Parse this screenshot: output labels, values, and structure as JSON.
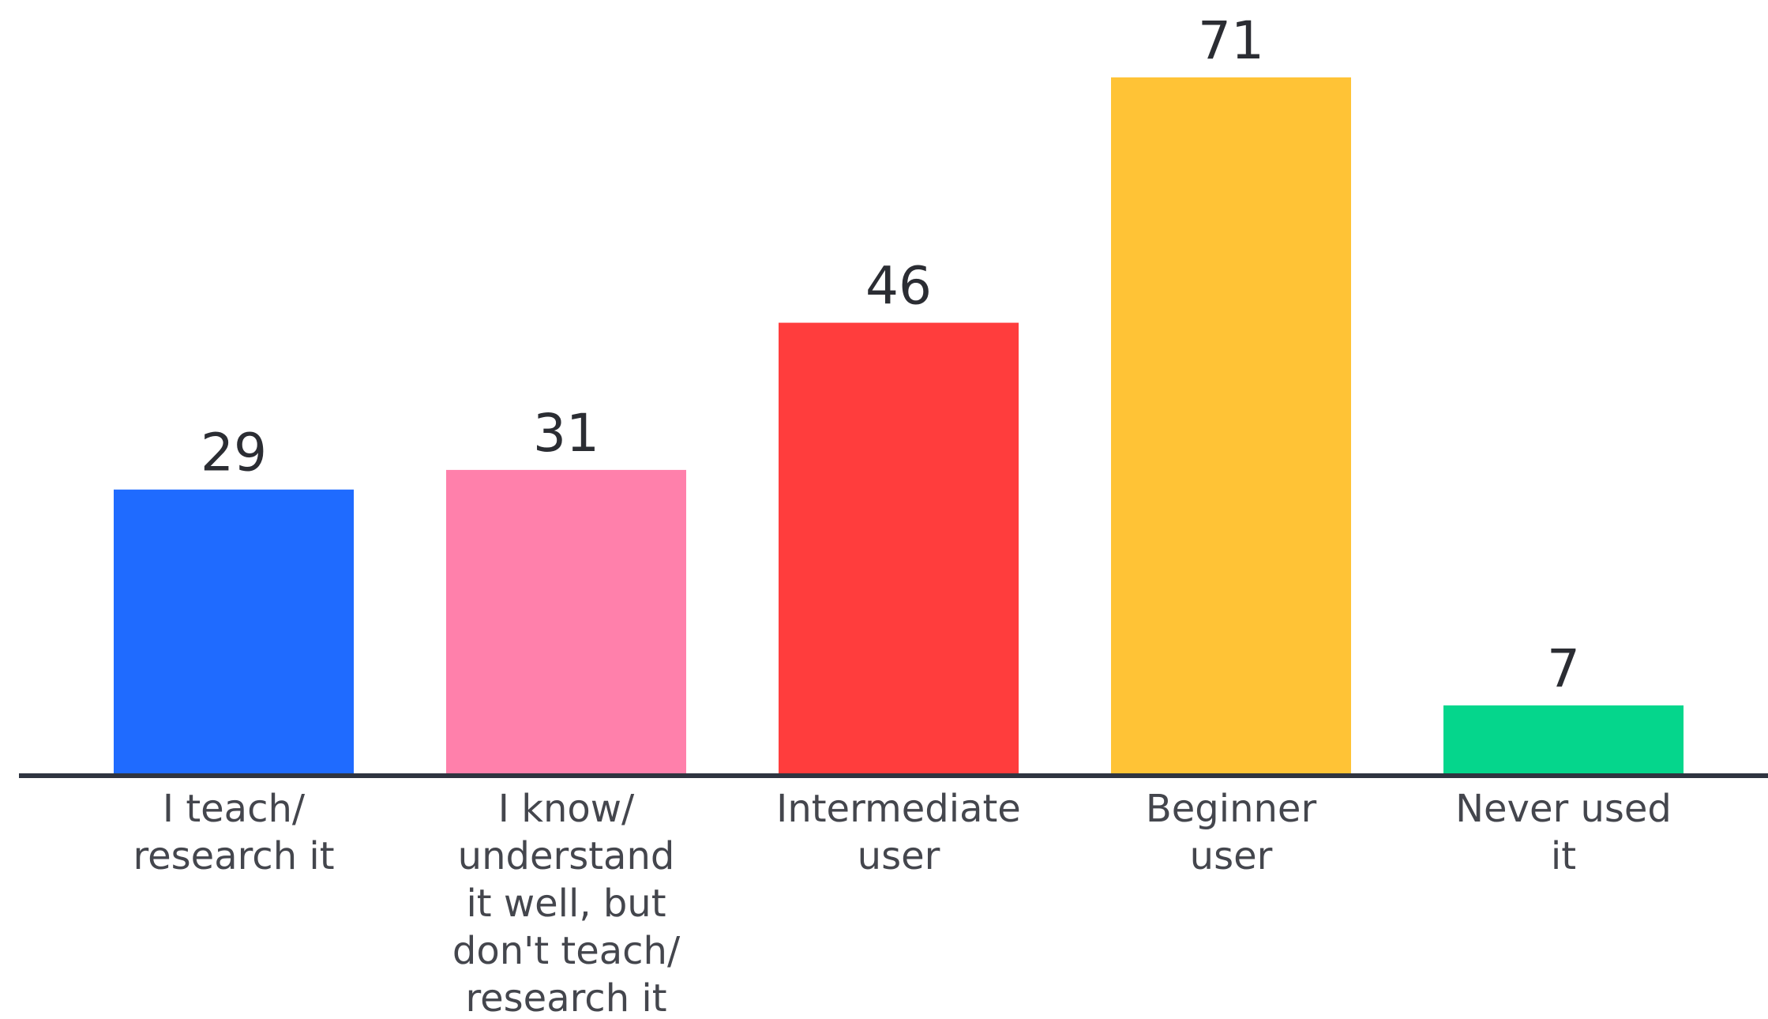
{
  "chart_data": {
    "type": "bar",
    "categories": [
      [
        "I teach/",
        "research it"
      ],
      [
        "I know/",
        "understand",
        "it well, but",
        "don't teach/",
        "research it"
      ],
      [
        "Intermediate",
        "user"
      ],
      [
        "Beginner",
        "user"
      ],
      [
        "Never used",
        "it"
      ]
    ],
    "values": [
      29,
      31,
      46,
      71,
      7
    ],
    "colors": [
      "#1f6bff",
      "#ff80ab",
      "#ff3d3d",
      "#ffc336",
      "#05d68c"
    ],
    "value_labels": [
      "29",
      "31",
      "46",
      "71",
      "7"
    ],
    "ylim": [
      0,
      71
    ],
    "grid": false,
    "legend": "none",
    "axis_color": "#2f3440"
  }
}
